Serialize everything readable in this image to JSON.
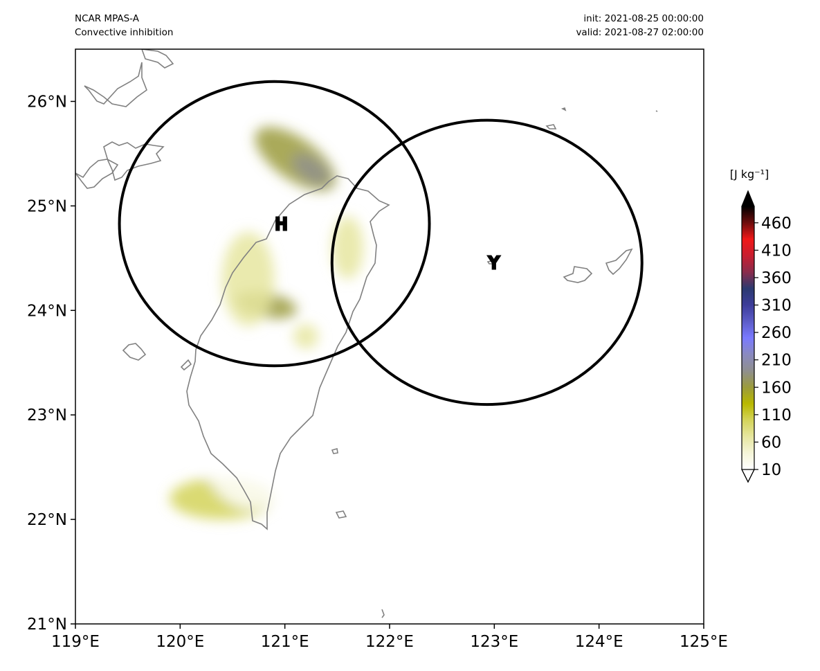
{
  "header": {
    "model": "NCAR MPAS-A",
    "field": "Convective inhibition",
    "init": "init: 2021-08-25 00:00:00",
    "valid": "valid: 2021-08-27 02:00:00"
  },
  "map": {
    "extent": {
      "lon": [
        119,
        125
      ],
      "lat": [
        21,
        26.5
      ]
    },
    "x_ticks": [
      {
        "lon": 119,
        "label": "119°E"
      },
      {
        "lon": 120,
        "label": "120°E"
      },
      {
        "lon": 121,
        "label": "121°E"
      },
      {
        "lon": 122,
        "label": "122°E"
      },
      {
        "lon": 123,
        "label": "123°E"
      },
      {
        "lon": 124,
        "label": "124°E"
      },
      {
        "lon": 125,
        "label": "125°E"
      }
    ],
    "y_ticks": [
      {
        "lat": 21,
        "label": "21°N"
      },
      {
        "lat": 22,
        "label": "22°N"
      },
      {
        "lat": 23,
        "label": "23°N"
      },
      {
        "lat": 24,
        "label": "24°N"
      },
      {
        "lat": 25,
        "label": "25°N"
      },
      {
        "lat": 26,
        "label": "26°N"
      }
    ],
    "radar_circles": [
      {
        "label": "H",
        "center_lon": 120.9,
        "center_lat": 24.83,
        "radius_deg_lon": 1.48,
        "radius_deg_lat": 1.36
      },
      {
        "label": "Y",
        "center_lon": 122.93,
        "center_lat": 24.46,
        "radius_deg_lon": 1.48,
        "radius_deg_lat": 1.36
      }
    ],
    "cin_blobs": [
      {
        "lon": 121.1,
        "lat": 25.45,
        "rx": 0.45,
        "ry": 0.2,
        "rot": 35,
        "level": 160
      },
      {
        "lon": 121.25,
        "lat": 25.35,
        "rx": 0.2,
        "ry": 0.1,
        "rot": 35,
        "level": 200
      },
      {
        "lon": 120.82,
        "lat": 24.05,
        "rx": 0.3,
        "ry": 0.12,
        "rot": 10,
        "level": 150
      },
      {
        "lon": 120.65,
        "lat": 24.3,
        "rx": 0.25,
        "ry": 0.45,
        "rot": 0,
        "level": 70
      },
      {
        "lon": 121.6,
        "lat": 24.6,
        "rx": 0.15,
        "ry": 0.3,
        "rot": 0,
        "level": 70
      },
      {
        "lon": 121.2,
        "lat": 23.75,
        "rx": 0.12,
        "ry": 0.12,
        "rot": 0,
        "level": 70
      },
      {
        "lon": 120.4,
        "lat": 22.2,
        "rx": 0.5,
        "ry": 0.2,
        "rot": 0,
        "level": 90
      },
      {
        "lon": 120.7,
        "lat": 22.7,
        "rx": 0.5,
        "ry": 0.6,
        "rot": 0,
        "level": 20
      },
      {
        "lon": 121.0,
        "lat": 23.2,
        "rx": 0.3,
        "ry": 0.4,
        "rot": 0,
        "level": 20
      }
    ],
    "coast_color": "#808080"
  },
  "colorbar": {
    "units": "[J kg⁻¹]",
    "tick_labels": [
      "10",
      "60",
      "110",
      "160",
      "210",
      "260",
      "310",
      "360",
      "410",
      "460"
    ],
    "range": [
      10,
      490
    ],
    "colors": [
      "#ffffff",
      "#f5f5d8",
      "#e6e6a0",
      "#d4d45a",
      "#b8b800",
      "#9b9b3c",
      "#8f8f8f",
      "#8a8ac0",
      "#7a7aff",
      "#5c5cc8",
      "#3d3d9a",
      "#2c3a70",
      "#8a2c4c",
      "#c81e30",
      "#f01818",
      "#6e0d0d",
      "#000000"
    ]
  }
}
